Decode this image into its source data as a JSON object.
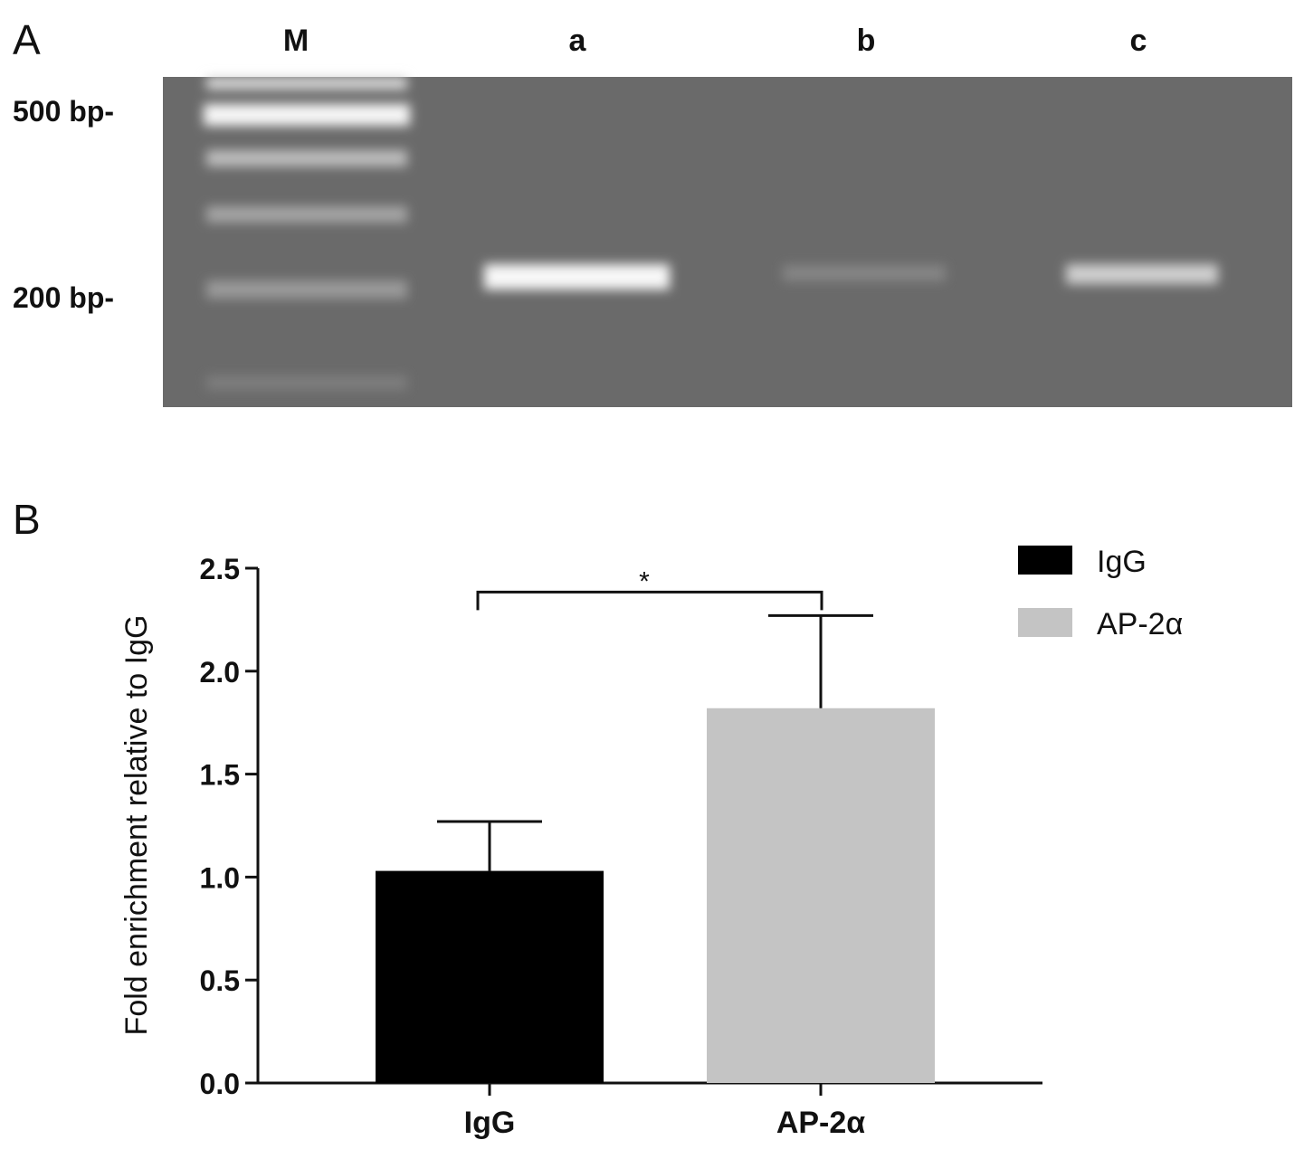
{
  "panel_a": {
    "label": "A",
    "lanes": [
      "M",
      "a",
      "b",
      "c"
    ],
    "markers": [
      "500 bp-",
      "200 bp-"
    ]
  },
  "chart_data": {
    "type": "bar",
    "panel_label": "B",
    "y_label": "Fold enrichment relative to IgG",
    "categories": [
      "IgG",
      "AP-2α"
    ],
    "series": [
      {
        "name": "IgG",
        "color": "#000000",
        "values": [
          1.03,
          null
        ],
        "errors": [
          0.24,
          null
        ]
      },
      {
        "name": "AP-2α",
        "color": "#c4c4c4",
        "values": [
          null,
          1.82
        ],
        "errors": [
          null,
          0.45
        ]
      }
    ],
    "ylim": [
      0,
      2.5
    ],
    "yticks": [
      {
        "value": 0,
        "label": "0.0"
      },
      0.5,
      {
        "value": 1,
        "label": "1.0"
      },
      1.5,
      {
        "value": 2,
        "label": "2.0"
      },
      2.5
    ],
    "annotation": "*",
    "legend": "top-right"
  }
}
